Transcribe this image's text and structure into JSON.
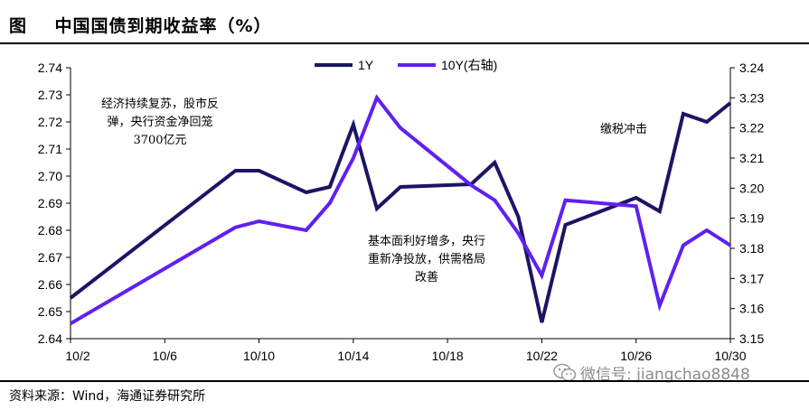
{
  "header": {
    "title": "图    中国国债到期收益率（%）"
  },
  "footer": {
    "source": "资料来源：Wind，海通证券研究所"
  },
  "watermark": {
    "text": "微信号: jiangchao8848"
  },
  "annotations": [
    {
      "lines": [
        "经济持续复苏，股市反",
        "弹，央行资金净回笼",
        "3700亿元"
      ]
    },
    {
      "lines": [
        "缴税冲击"
      ]
    },
    {
      "lines": [
        "基本面利好增多，央行",
        "重新净投放，供需格局",
        "改善"
      ]
    }
  ],
  "chart_data": {
    "type": "line",
    "x_tick_labels": [
      "10/2",
      "10/6",
      "10/10",
      "10/14",
      "10/18",
      "10/22",
      "10/26",
      "10/30"
    ],
    "x_tick_days": [
      2,
      6,
      10,
      14,
      18,
      22,
      26,
      30
    ],
    "x": [
      2,
      9,
      10,
      12,
      13,
      14,
      15,
      16,
      19,
      20,
      21,
      22,
      23,
      26,
      27,
      28,
      29,
      30
    ],
    "series": [
      {
        "name": "1Y",
        "axis": "left",
        "color": "#1c1464",
        "values": [
          2.655,
          2.702,
          2.702,
          2.694,
          2.696,
          2.719,
          2.688,
          2.696,
          2.697,
          2.705,
          2.685,
          2.646,
          2.682,
          2.692,
          2.687,
          2.723,
          2.72,
          2.727
        ]
      },
      {
        "name": "10Y(右轴)",
        "axis": "right",
        "color": "#6020f0",
        "values": [
          3.155,
          3.187,
          3.189,
          3.186,
          3.195,
          3.21,
          3.23,
          3.22,
          3.201,
          3.196,
          3.185,
          3.171,
          3.196,
          3.194,
          3.161,
          3.181,
          3.186,
          3.181
        ]
      }
    ],
    "y_left": {
      "min": 2.64,
      "max": 2.74,
      "ticks": [
        "2.64",
        "2.65",
        "2.66",
        "2.67",
        "2.68",
        "2.69",
        "2.70",
        "2.71",
        "2.72",
        "2.73",
        "2.74"
      ]
    },
    "y_right": {
      "min": 3.15,
      "max": 3.24,
      "ticks": [
        "3.15",
        "3.16",
        "3.17",
        "3.18",
        "3.19",
        "3.20",
        "3.21",
        "3.22",
        "3.23",
        "3.24"
      ]
    },
    "legend": "top-center",
    "grid": false
  }
}
